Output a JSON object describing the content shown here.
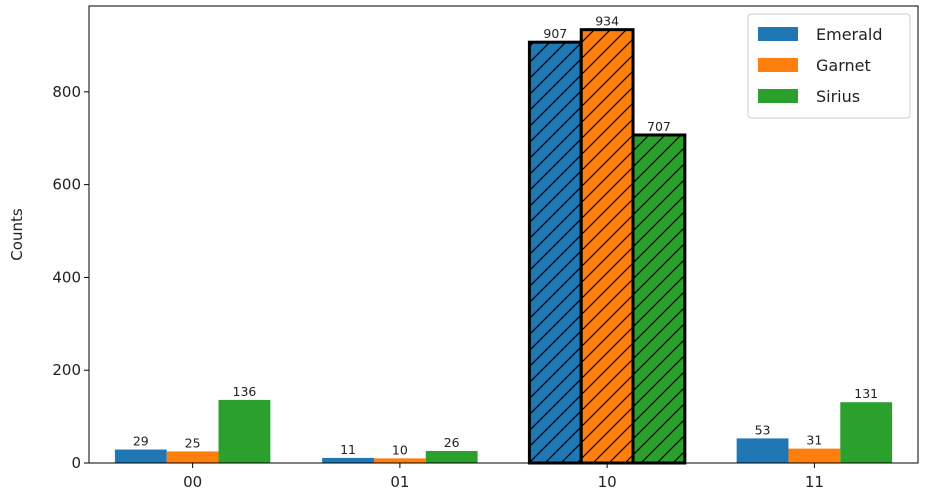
{
  "chart_data": {
    "type": "bar",
    "categories": [
      "00",
      "01",
      "10",
      "11"
    ],
    "series": [
      {
        "name": "Emerald",
        "values": [
          29,
          11,
          907,
          53
        ],
        "color": "#1f77b4"
      },
      {
        "name": "Garnet",
        "values": [
          25,
          10,
          934,
          31
        ],
        "color": "#ff7f0e"
      },
      {
        "name": "Sirius",
        "values": [
          136,
          26,
          707,
          131
        ],
        "color": "#2ca02c"
      }
    ],
    "highlight_category": "10",
    "ylabel": "Counts",
    "xlabel": "",
    "ylim": [
      0,
      985
    ],
    "yticks": [
      "0",
      "200",
      "400",
      "600",
      "800"
    ],
    "legend": "top-right",
    "grid": false
  }
}
